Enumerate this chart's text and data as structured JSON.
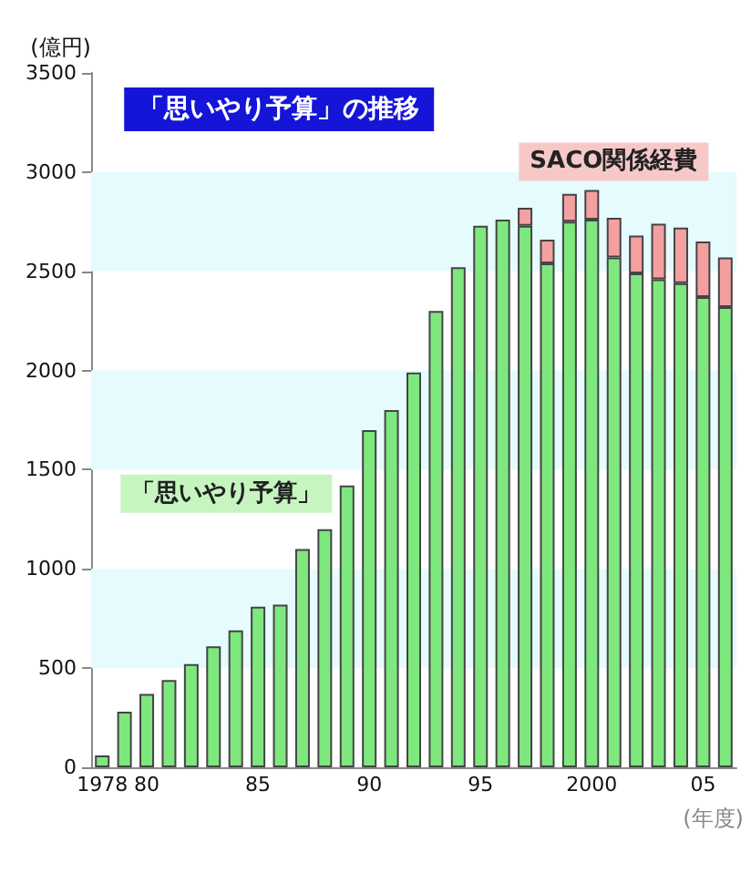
{
  "chart_data": {
    "type": "bar",
    "title": "「思いやり予算」の推移",
    "ylabel": "(億円)",
    "xlabel": "(年度)",
    "categories": [
      "1978",
      null,
      "80",
      null,
      null,
      null,
      null,
      "85",
      null,
      null,
      null,
      null,
      "90",
      null,
      null,
      null,
      null,
      "95",
      null,
      null,
      null,
      null,
      "2000",
      null,
      null,
      null,
      null,
      "05",
      null
    ],
    "series": [
      {
        "name": "「思いやり予算」",
        "color": "#7ee87e",
        "values": [
          60,
          280,
          370,
          440,
          520,
          610,
          690,
          810,
          820,
          1100,
          1200,
          1420,
          1700,
          1800,
          1990,
          2300,
          2520,
          2730,
          2760,
          2730,
          2540,
          2750,
          2760,
          2570,
          2490,
          2460,
          2440,
          2370,
          2320
        ]
      },
      {
        "name": "SACO関係経費",
        "color": "#f4a0a0",
        "values": [
          null,
          null,
          null,
          null,
          null,
          null,
          null,
          null,
          null,
          null,
          null,
          null,
          null,
          null,
          null,
          null,
          null,
          null,
          null,
          90,
          120,
          140,
          150,
          200,
          190,
          280,
          280,
          280,
          250
        ]
      }
    ],
    "stacked": true,
    "ylim": [
      0,
      3500
    ],
    "yticks": [
      0,
      500,
      1000,
      1500,
      2000,
      2500,
      3000,
      3500
    ],
    "bands": [
      {
        "axis": "y",
        "from": 500,
        "to": 1000,
        "color": "#e6fbfd"
      },
      {
        "axis": "y",
        "from": 1500,
        "to": 2000,
        "color": "#e6fbfd"
      },
      {
        "axis": "y",
        "from": 2500,
        "to": 3000,
        "color": "#e6fbfd"
      }
    ]
  }
}
